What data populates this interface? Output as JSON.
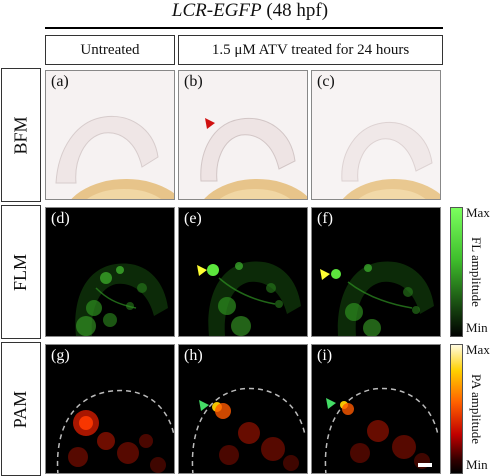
{
  "title": {
    "gene": "LCR-EGFP",
    "stage": " (48 hpf)"
  },
  "columns": {
    "untreated": "Untreated",
    "treated": "1.5 μM ATV treated for 24 hours"
  },
  "rows": {
    "bfm": "BFM",
    "flm": "FLM",
    "pam": "PAM"
  },
  "panels": [
    "(a)",
    "(b)",
    "(c)",
    "(d)",
    "(e)",
    "(f)",
    "(g)",
    "(h)",
    "(i)"
  ],
  "colorbars": {
    "fl": {
      "title": "FL amplitude",
      "max": "Max",
      "min": "Min"
    },
    "pa": {
      "title": "PA amplitude",
      "max": "Max",
      "min": "Min"
    }
  },
  "colors": {
    "fl": "#44e030",
    "pa": "#ff2a00",
    "arrow_red": "#d01010",
    "arrow_yellow": "#ffff33",
    "arrow_green": "#44dd66"
  }
}
